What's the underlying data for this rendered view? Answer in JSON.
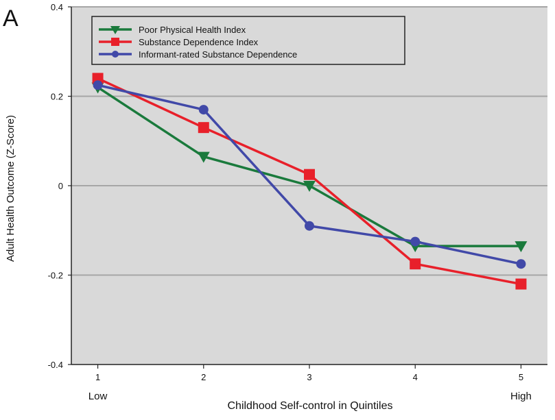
{
  "panel_label": "A",
  "chart_data": {
    "type": "line",
    "xlabel": "Childhood Self-control in Quintiles",
    "ylabel": "Adult Health Outcome (Z-Score)",
    "x": [
      1,
      2,
      3,
      4,
      5
    ],
    "x_tick_labels": [
      "1",
      "2",
      "3",
      "4",
      "5"
    ],
    "x_end_labels": {
      "low": "Low",
      "high": "High"
    },
    "xlim": [
      0.75,
      5.25
    ],
    "ylim": [
      -0.4,
      0.4
    ],
    "y_ticks": [
      -0.4,
      -0.2,
      0,
      0.2,
      0.4
    ],
    "y_tick_labels": [
      "-0.4",
      "-0.2",
      "0",
      "0.2",
      "0.4"
    ],
    "grid": true,
    "legend_position": "top-left",
    "background_color": "#d9d9d9",
    "series": [
      {
        "name": "Poor Physical Health Index",
        "color": "#1a7a3c",
        "marker": "triangle-down",
        "values": [
          0.22,
          0.065,
          0.0,
          -0.135,
          -0.135
        ]
      },
      {
        "name": "Substance Dependence Index",
        "color": "#e8202a",
        "marker": "square",
        "values": [
          0.24,
          0.13,
          0.025,
          -0.175,
          -0.22
        ]
      },
      {
        "name": "Informant-rated Substance Dependence",
        "color": "#4149a8",
        "marker": "circle",
        "values": [
          0.225,
          0.17,
          -0.09,
          -0.125,
          -0.175
        ]
      }
    ]
  }
}
